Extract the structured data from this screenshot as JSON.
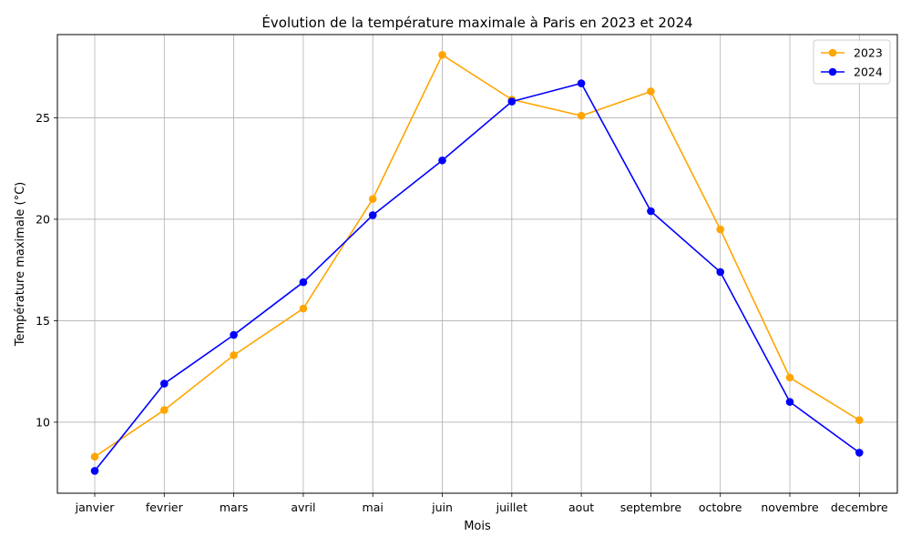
{
  "chart_data": {
    "type": "line",
    "title": "Évolution de la température maximale à Paris en 2023 et 2024",
    "xlabel": "Mois",
    "ylabel": "Température maximale (°C)",
    "categories": [
      "janvier",
      "fevrier",
      "mars",
      "avril",
      "mai",
      "juin",
      "juillet",
      "aout",
      "septembre",
      "octobre",
      "novembre",
      "decembre"
    ],
    "series": [
      {
        "name": "2023",
        "color": "#ffa500",
        "marker": "circle",
        "values": [
          8.3,
          10.6,
          13.3,
          15.6,
          21.0,
          28.1,
          25.9,
          25.1,
          26.3,
          19.5,
          12.2,
          10.1
        ]
      },
      {
        "name": "2024",
        "color": "#0000ff",
        "marker": "circle",
        "values": [
          7.6,
          11.9,
          14.3,
          16.9,
          20.2,
          22.9,
          25.8,
          26.7,
          20.4,
          17.4,
          11.0,
          8.5
        ]
      }
    ],
    "ylim": [
      6.5,
      29.1
    ],
    "yticks": [
      10,
      15,
      20,
      25
    ],
    "grid": true,
    "legend_position": "top-right"
  }
}
